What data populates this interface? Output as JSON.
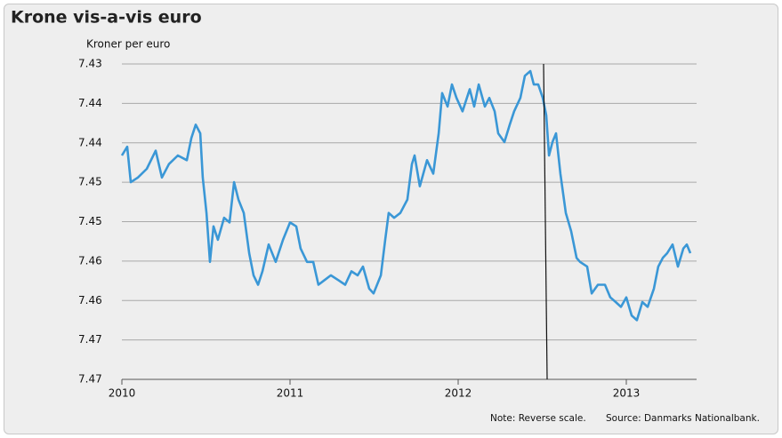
{
  "chart_data": {
    "type": "line",
    "title": "Krone vis-a-vis euro",
    "y_label": "Kroner per euro",
    "note": "Note: Reverse scale.",
    "source": "Source: Danmarks Nationalbank.",
    "xlim": [
      2010,
      2013.418
    ],
    "xticks": [
      2010,
      2011,
      2012,
      2013
    ],
    "ylim": [
      7.47,
      7.43
    ],
    "yticks": [
      {
        "value": 7.47,
        "label": "7.47"
      },
      {
        "value": 7.465,
        "label": "7.47"
      },
      {
        "value": 7.46,
        "label": "7.46"
      },
      {
        "value": 7.455,
        "label": "7.46"
      },
      {
        "value": 7.45,
        "label": "7.45"
      },
      {
        "value": 7.445,
        "label": "7.45"
      },
      {
        "value": 7.44,
        "label": "7.44"
      },
      {
        "value": 7.435,
        "label": "7.44"
      },
      {
        "value": 7.43,
        "label": "7.43"
      }
    ],
    "grid": true,
    "vlines": [
      2012.508
    ],
    "series": [
      {
        "name": "Krone per euro",
        "color": "#3a97d6",
        "x": [
          2010.0,
          2010.032,
          2010.053,
          2010.095,
          2010.148,
          2010.201,
          2010.238,
          2010.28,
          2010.333,
          2010.386,
          2010.413,
          2010.439,
          2010.466,
          2010.481,
          2010.503,
          2010.524,
          2010.545,
          2010.571,
          2010.608,
          2010.64,
          2010.667,
          2010.693,
          2010.725,
          2010.757,
          2010.783,
          2010.81,
          2010.836,
          2010.873,
          2010.915,
          2010.958,
          2011.0,
          2011.037,
          2011.063,
          2011.101,
          2011.138,
          2011.169,
          2011.206,
          2011.243,
          2011.286,
          2011.328,
          2011.365,
          2011.402,
          2011.434,
          2011.471,
          2011.497,
          2011.54,
          2011.566,
          2011.587,
          2011.619,
          2011.656,
          2011.698,
          2011.725,
          2011.741,
          2011.772,
          2011.815,
          2011.852,
          2011.884,
          2011.905,
          2011.937,
          2011.963,
          2011.99,
          2012.026,
          2012.069,
          2012.095,
          2012.122,
          2012.159,
          2012.185,
          2012.217,
          2012.238,
          2012.275,
          2012.307,
          2012.333,
          2012.37,
          2012.397,
          2012.429,
          2012.45,
          2012.476,
          2012.503,
          2012.524,
          2012.54,
          2012.561,
          2012.582,
          2012.608,
          2012.64,
          2012.672,
          2012.704,
          2012.725,
          2012.767,
          2012.794,
          2012.831,
          2012.873,
          2012.905,
          2012.937,
          2012.968,
          2013.0,
          2013.032,
          2013.063,
          2013.095,
          2013.127,
          2013.164,
          2013.19,
          2013.217,
          2013.243,
          2013.275,
          2013.307,
          2013.339,
          2013.36,
          2013.381
        ],
        "values": [
          7.4416,
          7.4405,
          7.445,
          7.4444,
          7.4433,
          7.441,
          7.4444,
          7.4427,
          7.4416,
          7.4422,
          7.4394,
          7.4377,
          7.4388,
          7.4444,
          7.4489,
          7.4551,
          7.4506,
          7.4523,
          7.4495,
          7.4501,
          7.445,
          7.4472,
          7.4489,
          7.454,
          7.4568,
          7.458,
          7.4563,
          7.4529,
          7.4551,
          7.4523,
          7.4501,
          7.4506,
          7.4534,
          7.4551,
          7.4551,
          7.458,
          7.4574,
          7.4568,
          7.4574,
          7.458,
          7.4563,
          7.4568,
          7.4557,
          7.4585,
          7.4591,
          7.4568,
          7.4523,
          7.4489,
          7.4495,
          7.4489,
          7.4472,
          7.4427,
          7.4416,
          7.4455,
          7.4422,
          7.4439,
          7.4388,
          7.4337,
          7.4354,
          7.4326,
          7.4343,
          7.436,
          7.4332,
          7.4354,
          7.4326,
          7.4354,
          7.4343,
          7.436,
          7.4388,
          7.4399,
          7.4377,
          7.436,
          7.4343,
          7.4315,
          7.4309,
          7.4326,
          7.4326,
          7.4343,
          7.4365,
          7.4416,
          7.4399,
          7.4388,
          7.4439,
          7.4489,
          7.4512,
          7.4546,
          7.4551,
          7.4557,
          7.4591,
          7.458,
          7.458,
          7.4596,
          7.4602,
          7.4608,
          7.4596,
          7.4619,
          7.4625,
          7.4602,
          7.4608,
          7.4585,
          7.4557,
          7.4546,
          7.454,
          7.4529,
          7.4557,
          7.4534,
          7.4529,
          7.454
        ]
      }
    ]
  }
}
